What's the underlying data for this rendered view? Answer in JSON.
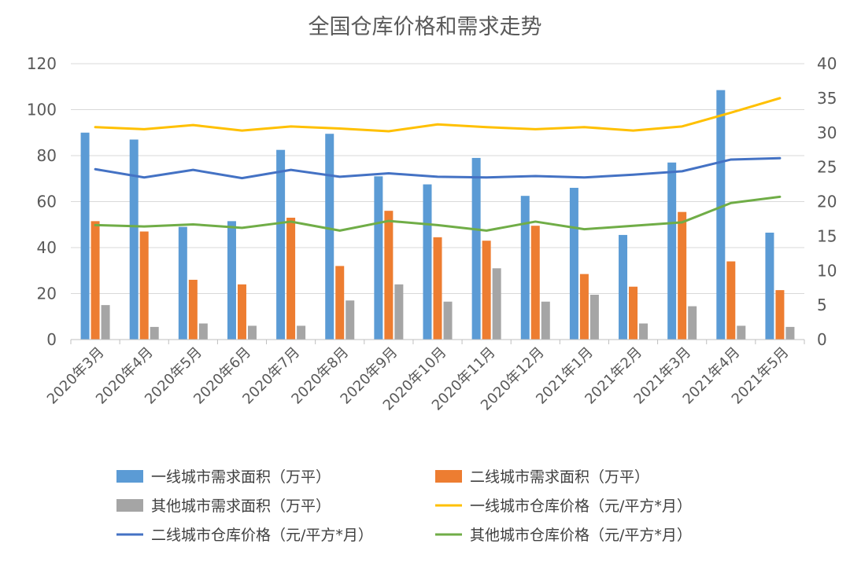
{
  "chart_data": {
    "type": "bar",
    "title": "全国仓库价格和需求走势",
    "categories": [
      "2020年3月",
      "2020年4月",
      "2020年5月",
      "2020年6月",
      "2020年7月",
      "2020年8月",
      "2020年9月",
      "2020年10月",
      "2020年11月",
      "2020年12月",
      "2021年1月",
      "2021年2月",
      "2021年3月",
      "2021年4月",
      "2021年5月"
    ],
    "ylim_left": [
      0,
      120
    ],
    "left_ticks": [
      0,
      20,
      40,
      60,
      80,
      100,
      120
    ],
    "ylim_right": [
      0,
      40
    ],
    "right_ticks": [
      0,
      5,
      10,
      15,
      20,
      25,
      30,
      35,
      40
    ],
    "grid": true,
    "legend_position": "bottom",
    "bar_series": [
      {
        "name": "一线城市需求面积（万平）",
        "color": "#5b9bd5",
        "values": [
          90,
          87,
          49,
          51.5,
          82.5,
          89.5,
          71,
          67.5,
          79,
          62.5,
          66,
          45.5,
          77,
          108.5,
          46.5
        ]
      },
      {
        "name": "二线城市需求面积（万平）",
        "color": "#ed7d31",
        "values": [
          51.5,
          47,
          26,
          24,
          53,
          32,
          56,
          44.5,
          43,
          49.5,
          28.5,
          23,
          55.5,
          34,
          21.5
        ]
      },
      {
        "name": "其他城市需求面积（万平）",
        "color": "#a5a5a5",
        "values": [
          15,
          5.5,
          7,
          6,
          6,
          17,
          24,
          16.5,
          31,
          16.5,
          19.5,
          7,
          14.5,
          6,
          5.5
        ]
      }
    ],
    "line_series": [
      {
        "name": "一线城市仓库价格（元/平方*月）",
        "color": "#ffc000",
        "values": [
          30.8,
          30.5,
          31.1,
          30.3,
          30.9,
          30.6,
          30.2,
          31.2,
          30.8,
          30.5,
          30.8,
          30.3,
          30.9,
          32.9,
          35.0
        ]
      },
      {
        "name": "二线城市仓库价格（元/平方*月）",
        "color": "#4472c4",
        "values": [
          24.7,
          23.5,
          24.6,
          23.4,
          24.6,
          23.6,
          24.1,
          23.6,
          23.5,
          23.7,
          23.5,
          23.9,
          24.4,
          26.1,
          26.3
        ]
      },
      {
        "name": "其他城市仓库价格（元/平方*月）",
        "color": "#70ad47",
        "values": [
          16.6,
          16.4,
          16.7,
          16.2,
          17.1,
          15.8,
          17.2,
          16.6,
          15.8,
          17.1,
          16.0,
          16.5,
          17.0,
          19.8,
          20.7
        ]
      }
    ]
  }
}
